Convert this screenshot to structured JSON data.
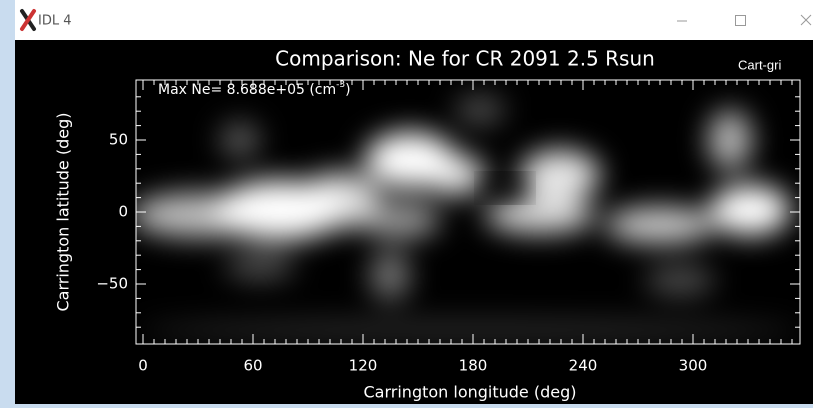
{
  "window": {
    "title": "IDL 4"
  },
  "plot": {
    "title": "Comparison: Ne for CR 2091 2.5 Rsun",
    "side_label": "Cart-gri",
    "annotation": {
      "text": "Max Ne= 8.688e+05 (cm",
      "superscript": "-3",
      "close": ")"
    },
    "xlabel": "Carrington longitude (deg)",
    "ylabel": "Carrington latitude (deg)",
    "xlim": [
      0,
      360
    ],
    "ylim": [
      -90,
      90
    ],
    "xticks": [
      0,
      60,
      120,
      180,
      240,
      300
    ],
    "yticks": [
      {
        "value": -50,
        "label": "−50"
      },
      0,
      50
    ]
  }
}
